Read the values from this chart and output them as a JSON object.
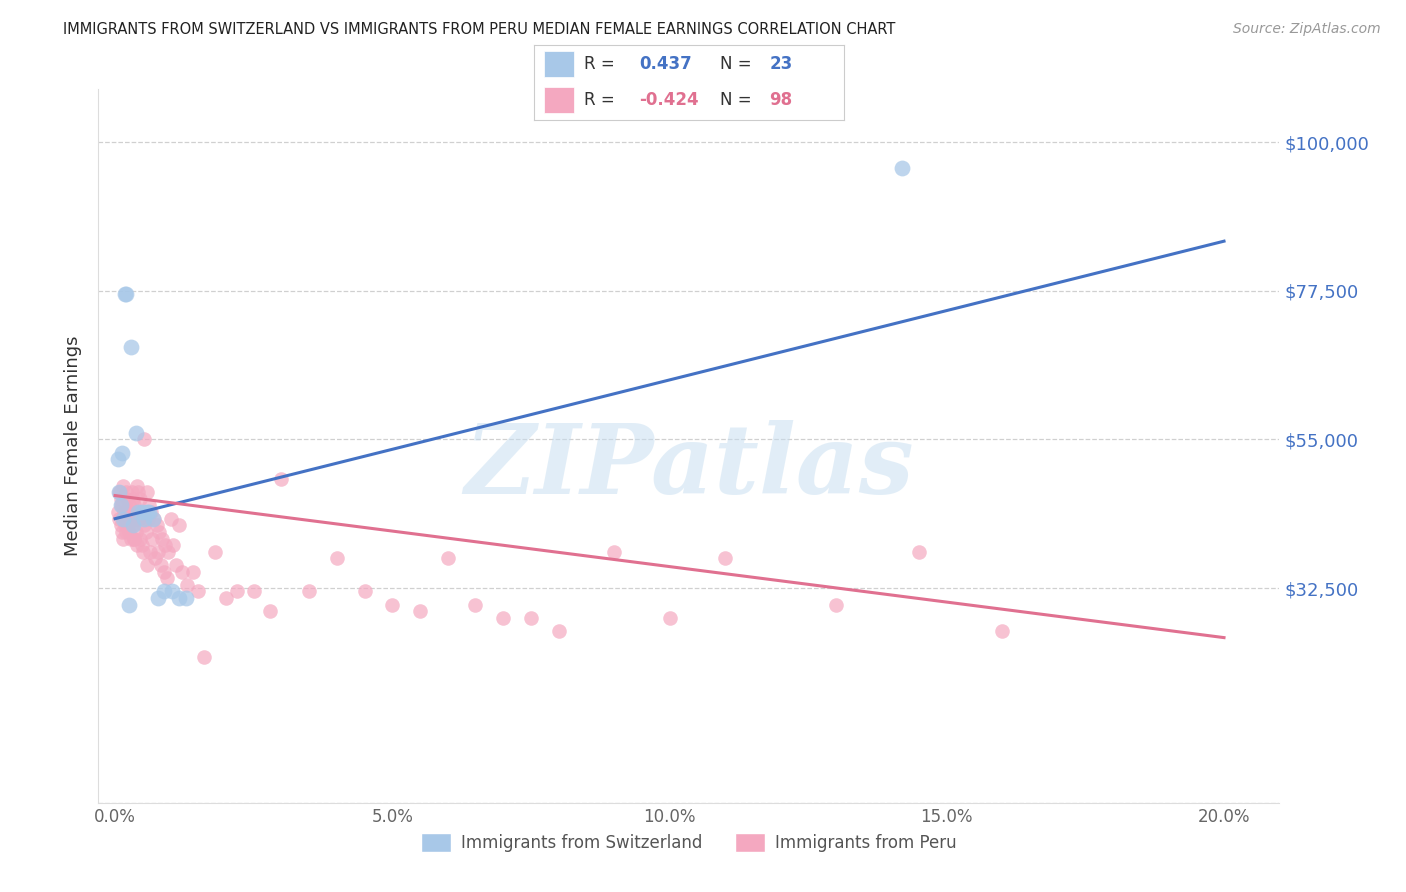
{
  "title": "IMMIGRANTS FROM SWITZERLAND VS IMMIGRANTS FROM PERU MEDIAN FEMALE EARNINGS CORRELATION CHART",
  "source": "Source: ZipAtlas.com",
  "ylabel": "Median Female Earnings",
  "ytick_vals": [
    0,
    32500,
    55000,
    77500,
    100000
  ],
  "ytick_labels": [
    "",
    "$32,500",
    "$55,000",
    "$77,500",
    "$100,000"
  ],
  "xtick_vals": [
    0,
    5,
    10,
    15,
    20
  ],
  "xtick_labels": [
    "0.0%",
    "5.0%",
    "10.0%",
    "15.0%",
    "20.0%"
  ],
  "ymin": 0,
  "ymax": 108000,
  "xmin": -0.3,
  "xmax": 21.0,
  "blue_R": 0.437,
  "blue_N": 23,
  "pink_R": -0.424,
  "pink_N": 98,
  "blue_color": "#a8c8e8",
  "pink_color": "#f4a8c0",
  "blue_line_color": "#4472C4",
  "pink_line_color": "#e07090",
  "legend_label_blue": "Immigrants from Switzerland",
  "legend_label_pink": "Immigrants from Peru",
  "watermark": "ZIPatlas",
  "background_color": "#ffffff",
  "grid_color": "#d0d0d0",
  "title_color": "#222222",
  "axis_label_color": "#333333",
  "ytick_color": "#4472C4",
  "xtick_color": "#666666",
  "source_color": "#999999",
  "blue_x": [
    0.08,
    0.12,
    0.18,
    0.2,
    0.28,
    0.32,
    0.38,
    0.42,
    0.48,
    0.52,
    0.58,
    0.62,
    0.68,
    0.78,
    0.88,
    1.02,
    1.15,
    1.28,
    0.05,
    0.15,
    0.25,
    14.2,
    0.1
  ],
  "blue_y": [
    47000,
    53000,
    77000,
    77000,
    69000,
    42000,
    56000,
    44000,
    44000,
    43000,
    44000,
    44000,
    43000,
    31000,
    32000,
    32000,
    31000,
    31000,
    52000,
    43000,
    30000,
    96000,
    45000
  ],
  "pink_x": [
    0.05,
    0.07,
    0.08,
    0.1,
    0.1,
    0.12,
    0.13,
    0.15,
    0.15,
    0.17,
    0.18,
    0.2,
    0.2,
    0.22,
    0.23,
    0.25,
    0.25,
    0.27,
    0.28,
    0.3,
    0.3,
    0.32,
    0.33,
    0.35,
    0.35,
    0.37,
    0.38,
    0.4,
    0.4,
    0.42,
    0.43,
    0.45,
    0.45,
    0.47,
    0.48,
    0.5,
    0.5,
    0.52,
    0.53,
    0.55,
    0.55,
    0.57,
    0.58,
    0.6,
    0.62,
    0.63,
    0.65,
    0.67,
    0.7,
    0.72,
    0.75,
    0.78,
    0.8,
    0.83,
    0.85,
    0.88,
    0.9,
    0.93,
    0.95,
    1.0,
    1.05,
    1.1,
    1.15,
    1.2,
    1.3,
    1.4,
    1.5,
    1.6,
    1.8,
    2.0,
    2.2,
    2.5,
    2.8,
    3.0,
    3.5,
    4.0,
    4.5,
    5.0,
    5.5,
    6.0,
    6.5,
    7.0,
    7.5,
    8.0,
    9.0,
    10.0,
    11.0,
    13.0,
    14.5,
    16.0,
    0.09,
    0.11,
    0.16,
    0.19,
    0.24,
    0.29,
    0.34,
    0.39
  ],
  "pink_y": [
    44000,
    47000,
    43000,
    46000,
    42000,
    45000,
    41000,
    48000,
    40000,
    44000,
    42000,
    47000,
    43000,
    46000,
    42000,
    45000,
    41000,
    44000,
    40000,
    47000,
    43000,
    46000,
    42000,
    45000,
    40000,
    44000,
    41000,
    48000,
    43000,
    47000,
    43000,
    46000,
    40000,
    44000,
    39000,
    43000,
    38000,
    42000,
    55000,
    44000,
    41000,
    47000,
    36000,
    43000,
    45000,
    38000,
    44000,
    40000,
    43000,
    37000,
    42000,
    38000,
    41000,
    36000,
    40000,
    35000,
    39000,
    34000,
    38000,
    43000,
    39000,
    36000,
    42000,
    35000,
    33000,
    35000,
    32000,
    22000,
    38000,
    31000,
    32000,
    32000,
    29000,
    49000,
    32000,
    37000,
    32000,
    30000,
    29000,
    37000,
    30000,
    28000,
    28000,
    26000,
    38000,
    28000,
    37000,
    30000,
    38000,
    26000,
    47000,
    45000,
    43000,
    41000,
    44000,
    42000,
    40000,
    39000
  ],
  "blue_trend_x": [
    0.0,
    20.0
  ],
  "blue_trend_y": [
    43000,
    85000
  ],
  "pink_trend_x": [
    0.0,
    20.0
  ],
  "pink_trend_y": [
    46500,
    25000
  ]
}
